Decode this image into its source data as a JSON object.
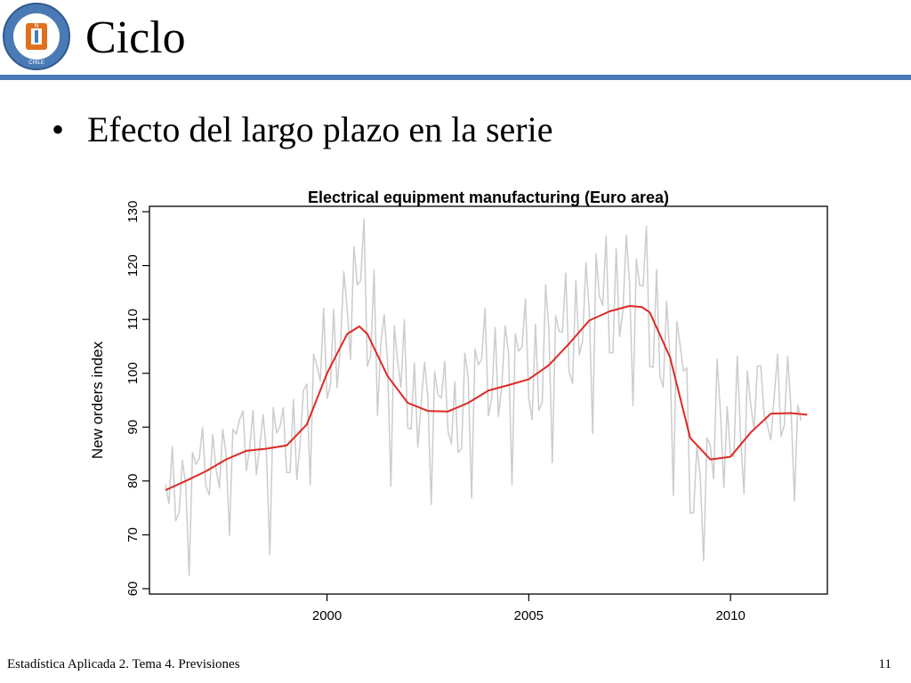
{
  "slide": {
    "title": "Ciclo",
    "bullet": "Efecto del largo plazo en la serie",
    "footer_left": "Estadística Aplicada 2. Tema 4. Previsiones",
    "page_number": "11",
    "logo_text": "UNIVERSIDAD CATÓLICA DEL NORTE",
    "logo_sub": "CHILE",
    "logo_letters": "UCN",
    "accent_color": "#4a7ab5"
  },
  "chart_data": {
    "type": "line",
    "title": "Electrical equipment manufacturing (Euro area)",
    "xlabel": "",
    "ylabel": "New orders index",
    "xlim": [
      1995.6,
      2012.4
    ],
    "ylim": [
      59,
      131
    ],
    "xticks": [
      2000,
      2005,
      2010
    ],
    "yticks": [
      60,
      70,
      80,
      90,
      100,
      110,
      120,
      130
    ],
    "grid": false,
    "series": [
      {
        "color": "#cccccc",
        "start": 1996.0,
        "step": 0.0833333,
        "values": [
          79.4,
          75.8,
          86.4,
          72.6,
          74.1,
          83.8,
          79.3,
          62.4,
          85.3,
          83.1,
          84.1,
          89.9,
          79.0,
          77.4,
          88.6,
          82.3,
          78.7,
          89.6,
          84.8,
          69.9,
          89.6,
          88.7,
          91.4,
          93.0,
          81.9,
          86.0,
          93.1,
          81.2,
          86.4,
          92.3,
          85.2,
          66.3,
          93.6,
          88.9,
          90.1,
          93.6,
          81.6,
          81.5,
          95.1,
          80.2,
          86.9,
          96.8,
          98.0,
          79.3,
          103.6,
          101.4,
          98.5,
          112.1,
          95.3,
          97.8,
          111.9,
          97.3,
          105.3,
          118.9,
          112.0,
          102.6,
          123.5,
          116.4,
          117.2,
          128.6,
          101.3,
          103.2,
          119.2,
          92.2,
          105.3,
          110.9,
          102.2,
          79.0,
          108.8,
          102.2,
          97.4,
          109.9,
          89.9,
          89.6,
          101.9,
          86.3,
          94.4,
          102.1,
          95.4,
          75.6,
          100.3,
          96.0,
          95.4,
          102.2,
          89.2,
          86.9,
          98.4,
          85.3,
          86.0,
          103.7,
          99.3,
          76.8,
          104.5,
          101.6,
          102.6,
          112.0,
          92.1,
          95.5,
          108.5,
          92.0,
          97.8,
          108.8,
          103.6,
          79.3,
          107.3,
          104.1,
          104.9,
          113.8,
          95.3,
          91.4,
          109.1,
          93.1,
          94.7,
          116.4,
          108.1,
          83.4,
          110.7,
          107.8,
          107.6,
          118.6,
          100.3,
          98.1,
          117.2,
          103.4,
          106.0,
          120.5,
          111.4,
          88.8,
          122.1,
          114.3,
          112.6,
          125.5,
          103.8,
          103.8,
          123.1,
          106.8,
          111.6,
          125.6,
          116.6,
          94.0,
          121.2,
          116.3,
          116.2,
          127.3,
          101.3,
          101.1,
          119.3,
          99.5,
          97.4,
          113.4,
          103.0,
          77.3,
          109.6,
          105.3,
          100.4,
          101.0,
          74.0,
          74.1,
          86.4,
          81.0,
          65.2,
          88.0,
          86.5,
          80.4,
          102.6,
          92.8,
          78.8,
          93.8,
          84.7,
          84.6,
          103.2,
          88.0,
          77.6,
          100.4,
          94.2,
          89.5,
          101.3,
          101.4,
          92.2,
          90.3,
          87.6,
          95.8,
          103.5,
          88.3,
          90.4,
          103.1,
          93.1,
          76.3,
          94.1,
          91.2
        ]
      },
      {
        "color": "#dd2a25",
        "x": [
          1996.0,
          1996.5,
          1997.0,
          1997.5,
          1998.0,
          1998.5,
          1999.0,
          1999.5,
          2000.0,
          2000.5,
          2000.8,
          2001.0,
          2001.5,
          2002.0,
          2002.5,
          2003.0,
          2003.5,
          2004.0,
          2004.5,
          2005.0,
          2005.5,
          2006.0,
          2006.5,
          2007.0,
          2007.5,
          2007.8,
          2008.0,
          2008.5,
          2009.0,
          2009.5,
          2010.0,
          2010.5,
          2011.0,
          2011.5,
          2011.9
        ],
        "values": [
          78.3,
          80.0,
          81.8,
          84.0,
          85.6,
          86.0,
          86.6,
          90.5,
          100.0,
          107.3,
          108.7,
          107.3,
          99.5,
          94.5,
          93.0,
          92.9,
          94.5,
          96.8,
          97.8,
          98.9,
          101.5,
          105.5,
          109.8,
          111.5,
          112.5,
          112.3,
          111.3,
          103.0,
          88.0,
          84.0,
          84.5,
          89.0,
          92.5,
          92.6,
          92.3
        ]
      }
    ]
  }
}
